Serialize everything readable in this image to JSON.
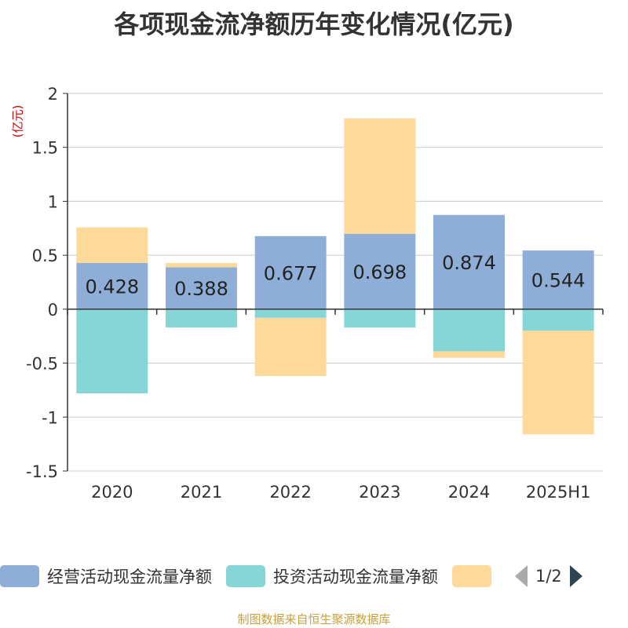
{
  "chart_data": {
    "type": "bar",
    "stacked": true,
    "title": "各项现金流净额历年变化情况(亿元)",
    "ylabel": "(亿元)",
    "ylim": [
      -1.5,
      2
    ],
    "yticks": [
      2,
      1.5,
      1,
      0.5,
      0,
      -0.5,
      -1,
      -1.5
    ],
    "ytick_labels": [
      "2",
      "1.5",
      "1",
      "0.5",
      "0",
      "-0.5",
      "-1",
      "-1.5"
    ],
    "grid": true,
    "legend_position": "bottom",
    "categories": [
      "2020",
      "2021",
      "2022",
      "2023",
      "2024",
      "2025H1"
    ],
    "series": [
      {
        "name": "经营活动现金流量净额",
        "color": "#8eaed8",
        "values": [
          0.428,
          0.388,
          0.677,
          0.698,
          0.874,
          0.544
        ],
        "labels": [
          "0.428",
          "0.388",
          "0.677",
          "0.698",
          "0.874",
          "0.544"
        ]
      },
      {
        "name": "投资活动现金流量净额",
        "color": "#86d6d8",
        "values": [
          -0.78,
          -0.17,
          -0.08,
          -0.17,
          -0.39,
          -0.2
        ]
      },
      {
        "name": "",
        "color": "#fdd99a",
        "values": [
          0.33,
          0.04,
          -0.54,
          1.07,
          -0.06,
          -0.96
        ]
      }
    ]
  },
  "legend": {
    "items": [
      {
        "label": "经营活动现金流量净额",
        "color": "#8eaed8"
      },
      {
        "label": "投资活动现金流量净额",
        "color": "#86d6d8"
      },
      {
        "label": "",
        "color": "#fdd99a"
      }
    ],
    "page_text": "1/2"
  },
  "source_text": "制图数据来自恒生聚源数据库"
}
